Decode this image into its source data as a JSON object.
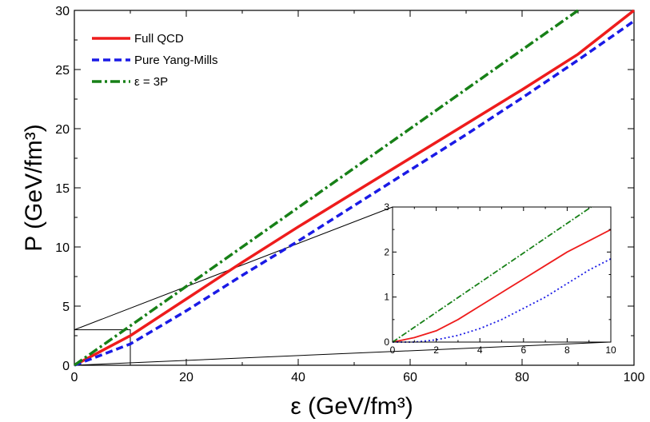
{
  "chart_data": [
    {
      "type": "line",
      "title": "",
      "xlabel": "ε (GeV/fm³)",
      "ylabel": "P (GeV/fm³)",
      "xlim": [
        0,
        100
      ],
      "ylim": [
        0,
        30
      ],
      "xticks": [
        0,
        20,
        40,
        60,
        80,
        100
      ],
      "yticks": [
        0,
        5,
        10,
        15,
        20,
        25,
        30
      ],
      "legend_position": "top-left",
      "series": [
        {
          "name": "Full QCD",
          "color": "#ee1c1c",
          "style": "solid",
          "x": [
            0,
            10,
            20,
            30,
            40,
            50,
            60,
            70,
            80,
            90,
            100
          ],
          "y": [
            0,
            2.5,
            5.6,
            8.7,
            11.7,
            14.6,
            17.5,
            20.4,
            23.3,
            26.3,
            30.0
          ]
        },
        {
          "name": "Pure Yang-Mills",
          "color": "#1a1ae6",
          "style": "dashed",
          "x": [
            0,
            10,
            20,
            30,
            40,
            50,
            60,
            70,
            80,
            90,
            100
          ],
          "y": [
            0,
            1.8,
            4.6,
            7.6,
            10.5,
            13.5,
            16.5,
            19.5,
            22.6,
            25.8,
            29.1
          ]
        },
        {
          "name": "ε = 3P",
          "color": "#178017",
          "style": "dash-dot",
          "x": [
            0,
            90
          ],
          "y": [
            0,
            30
          ]
        }
      ]
    },
    {
      "type": "line",
      "title": "inset",
      "xlim": [
        0,
        10
      ],
      "ylim": [
        0,
        3
      ],
      "xticks": [
        0,
        2,
        4,
        6,
        8,
        10
      ],
      "yticks": [
        0,
        1,
        2,
        3
      ],
      "series": [
        {
          "name": "Full QCD",
          "color": "#ee1c1c",
          "style": "solid",
          "x": [
            0,
            0.5,
            1,
            2,
            3,
            4,
            5,
            6,
            7,
            8,
            9,
            10
          ],
          "y": [
            0,
            0.05,
            0.1,
            0.25,
            0.5,
            0.8,
            1.1,
            1.4,
            1.7,
            2.0,
            2.25,
            2.5
          ]
        },
        {
          "name": "Pure Yang-Mills",
          "color": "#1a1ae6",
          "style": "dotted",
          "x": [
            0,
            1,
            2,
            3,
            4,
            5,
            6,
            7,
            8,
            9,
            10
          ],
          "y": [
            0,
            0,
            0.05,
            0.15,
            0.3,
            0.5,
            0.75,
            1.0,
            1.3,
            1.6,
            1.85
          ]
        },
        {
          "name": "ε = 3P",
          "color": "#178017",
          "style": "dash-dot",
          "x": [
            0,
            9.1
          ],
          "y": [
            0,
            3.0
          ]
        }
      ]
    }
  ]
}
